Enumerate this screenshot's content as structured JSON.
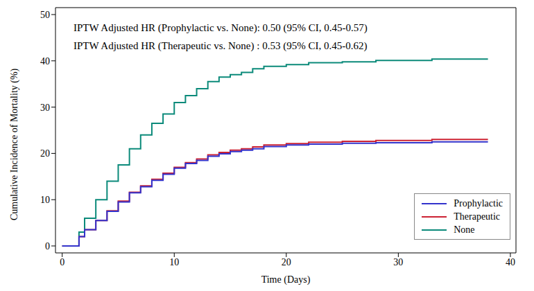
{
  "chart_data": {
    "type": "line",
    "title": "",
    "x_label": "Time (Days)",
    "y_label": "Cumulative Incidence of Mortality (%)",
    "annotations": [
      "IPTW Adjusted HR (Prophylactic vs. None): 0.50 (95% CI, 0.45-0.57)",
      "IPTW Adjusted HR (Therapeutic vs. None) : 0.53 (95% CI, 0.45-0.62)"
    ],
    "x": [
      0,
      1,
      1.5,
      2,
      3,
      4,
      5,
      6,
      7,
      8,
      9,
      10,
      11,
      12,
      13,
      14,
      15,
      16,
      17,
      18,
      20,
      22,
      25,
      28,
      33,
      38
    ],
    "series": [
      {
        "name": "Prophylactic",
        "color": "#3333cc",
        "values": [
          0,
          0,
          2,
          3.5,
          5.5,
          7.5,
          9.5,
          11.5,
          12.8,
          14.2,
          15.5,
          16.8,
          17.8,
          18.5,
          19.4,
          19.9,
          20.4,
          20.7,
          21.0,
          21.5,
          21.8,
          22.0,
          22.2,
          22.3,
          22.5,
          22.5
        ]
      },
      {
        "name": "Therapeutic",
        "color": "#cc2233",
        "values": [
          0,
          0,
          2,
          3.5,
          5.5,
          7.6,
          9.7,
          11.6,
          13.0,
          14.4,
          15.7,
          17.0,
          18.0,
          18.8,
          19.7,
          20.2,
          20.7,
          21.0,
          21.4,
          21.8,
          22.1,
          22.4,
          22.6,
          22.8,
          23.0,
          23.0
        ]
      },
      {
        "name": "None",
        "color": "#0b8a7a",
        "values": [
          0,
          0,
          3,
          6,
          10,
          14,
          17.5,
          21,
          24,
          26.5,
          28.5,
          31,
          32.5,
          34,
          35.5,
          36.5,
          37,
          37.5,
          38.3,
          38.8,
          39.2,
          39.6,
          39.8,
          40.1,
          40.4,
          40.4
        ]
      }
    ],
    "xlim": [
      -0.6,
      40.5
    ],
    "xticks": [
      0,
      10,
      20,
      30,
      40
    ],
    "ylim": [
      -1.5,
      51.5
    ],
    "yticks": [
      0,
      10,
      20,
      30,
      40,
      50
    ],
    "grid": false,
    "legend": "lower right"
  }
}
